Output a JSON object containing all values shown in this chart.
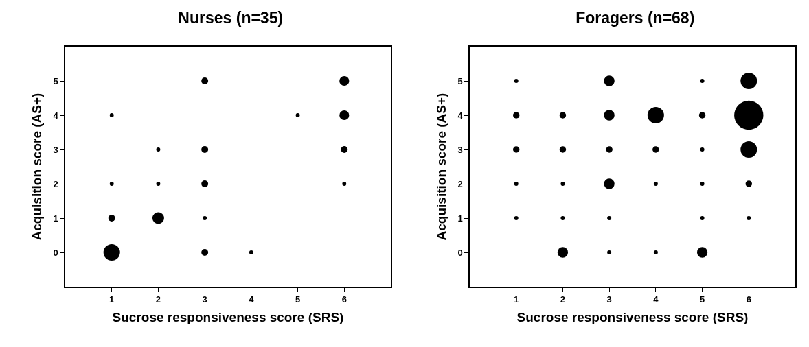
{
  "chart_data": [
    {
      "type": "bubble",
      "title": "Nurses (n=35)",
      "xlabel": "Sucrose responsiveness score (SRS)",
      "ylabel": "Acquisition score (AS+)",
      "xlim": [
        0,
        7
      ],
      "xticks": [
        1,
        2,
        3,
        4,
        5,
        6
      ],
      "ylim": [
        -1,
        6
      ],
      "yticks": [
        0,
        1,
        2,
        3,
        4,
        5
      ],
      "grid": false,
      "legend": false,
      "marker": "circle",
      "series": [
        {
          "color": "#000000",
          "x": [
            1,
            1,
            1,
            1,
            2,
            2,
            2,
            3,
            3,
            3,
            3,
            3,
            4,
            5,
            6,
            6,
            6,
            6
          ],
          "values": [
            0,
            1,
            2,
            4,
            1,
            2,
            3,
            0,
            1,
            2,
            3,
            5,
            0,
            4,
            2,
            3,
            4,
            5
          ],
          "sizes": [
            1,
            0.17,
            0.06,
            0.06,
            0.5,
            0.06,
            0.06,
            0.17,
            0.06,
            0.17,
            0.17,
            0.17,
            0.06,
            0.06,
            0.06,
            0.17,
            0.35,
            0.35
          ]
        }
      ]
    },
    {
      "type": "bubble",
      "title": "Foragers (n=68)",
      "xlabel": "Sucrose responsiveness score (SRS)",
      "ylabel": "Acquisition score (AS+)",
      "xlim": [
        0,
        7
      ],
      "xticks": [
        1,
        2,
        3,
        4,
        5,
        6
      ],
      "ylim": [
        -1,
        6
      ],
      "yticks": [
        0,
        1,
        2,
        3,
        4,
        5
      ],
      "grid": false,
      "legend": false,
      "marker": "circle",
      "series": [
        {
          "color": "#000000",
          "x": [
            1,
            1,
            1,
            1,
            1,
            2,
            2,
            2,
            2,
            2,
            3,
            3,
            3,
            3,
            3,
            3,
            4,
            4,
            4,
            4,
            5,
            5,
            5,
            5,
            5,
            5,
            6,
            6,
            6,
            6,
            6
          ],
          "values": [
            1,
            2,
            3,
            4,
            5,
            0,
            1,
            2,
            3,
            4,
            0,
            1,
            2,
            3,
            4,
            5,
            0,
            2,
            3,
            4,
            0,
            1,
            2,
            3,
            4,
            5,
            1,
            2,
            3,
            4,
            5
          ],
          "sizes": [
            0.02,
            0.02,
            0.05,
            0.05,
            0.02,
            0.13,
            0.02,
            0.02,
            0.05,
            0.05,
            0.02,
            0.02,
            0.13,
            0.05,
            0.13,
            0.13,
            0.02,
            0.02,
            0.05,
            0.32,
            0.13,
            0.02,
            0.02,
            0.02,
            0.05,
            0.02,
            0.02,
            0.05,
            0.32,
            1,
            0.32
          ]
        }
      ]
    }
  ]
}
